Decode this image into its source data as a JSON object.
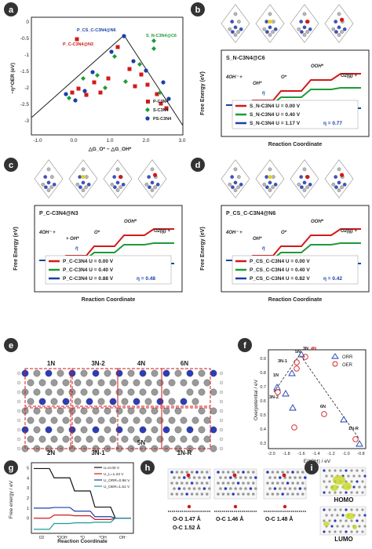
{
  "panel_a": {
    "label": "a",
    "ylabel": "−η^OER (eV)",
    "xlabel": "△G_O* − △G_OH*",
    "xticks": [
      "-1.0",
      "0.0",
      "1.0",
      "2.0",
      "3.0"
    ],
    "yticks": [
      "0",
      "-0.5",
      "-1",
      "-1.5",
      "-2",
      "-2.5",
      "-3"
    ],
    "annotations": [
      {
        "text": "P_CS_C-C3N4@N6",
        "color": "#1a3fa8"
      },
      {
        "text": "P_C-C3N4@N3",
        "color": "#d11a1a"
      },
      {
        "text": "S_N-C3N4@C6",
        "color": "#1e9a3a"
      }
    ],
    "legend": [
      {
        "text": "P-C3N4",
        "color": "#d11a1a",
        "marker": "square"
      },
      {
        "text": "S-C3N4",
        "color": "#1e9a3a",
        "marker": "diamond"
      },
      {
        "text": "PS-C3N4",
        "color": "#1a3fa8",
        "marker": "circle"
      }
    ]
  },
  "free_energy_panels": [
    {
      "label": "b",
      "title": "S_N-C3N4@C6",
      "ylabel": "Free Energy (eV)",
      "xlabel": "Reaction Coordinate",
      "species": [
        "4OH⁻ +",
        "OH*",
        "O*",
        "OOH*",
        "O2(g) +"
      ],
      "eta_marker": "η",
      "legend": [
        {
          "text": "S_N-C3N4 U = 0.00 V",
          "color": "#d11a1a"
        },
        {
          "text": "S_N-C3N4 U = 0.40 V",
          "color": "#1e9a3a"
        },
        {
          "text": "S_N-C3N4 U = 1.17 V",
          "eta": "η = 0.77",
          "color": "#1a3fa8"
        }
      ]
    },
    {
      "label": "c",
      "title": "P_C-C3N4@N3",
      "ylabel": "Free Energy (eV)",
      "xlabel": "Reaction Coordinate",
      "species": [
        "4OH⁻ + ",
        "+ OH*",
        "O*",
        "OOH*",
        "O2(g) +"
      ],
      "eta_marker": "η",
      "legend": [
        {
          "text": "P_C-C3N4 U = 0.00 V",
          "color": "#d11a1a"
        },
        {
          "text": "P_C-C3N4 U = 0.40 V",
          "color": "#1e9a3a"
        },
        {
          "text": "P_C-C3N4 U = 0.88 V",
          "eta": "η = 0.48",
          "color": "#1a3fa8"
        }
      ]
    },
    {
      "label": "d",
      "title": "P_CS_C-C3N4@N6",
      "ylabel": "Free Energy (eV)",
      "xlabel": "Reaction Coordinate",
      "species": [
        "4OH⁻ +",
        "OH*",
        "O*",
        "OOH*",
        "O2(g) +"
      ],
      "eta_marker": "η",
      "legend": [
        {
          "text": "P_CS_C-C3N4 U = 0.00 V",
          "color": "#d11a1a"
        },
        {
          "text": "P_CS_C-C3N4 U = 0.40 V",
          "color": "#1e9a3a"
        },
        {
          "text": "P_CS_C-C3N4 U = 0.82 V",
          "eta": "η = 0.42",
          "color": "#1a3fa8"
        }
      ]
    }
  ],
  "panel_e": {
    "label": "e",
    "site_labels_top": [
      "1N",
      "3N-2",
      "4N",
      "6N"
    ],
    "site_labels_bottom": [
      "2N",
      "3N-1",
      "5N",
      "1N-R"
    ]
  },
  "panel_f": {
    "label": "f",
    "ylabel": "Overpotential / eV",
    "xlabel": "E(*OH) / eV",
    "xticks": [
      "-2.0",
      "-1.8",
      "-1.6",
      "-1.4",
      "-1.2",
      "-1.0",
      "-0.8"
    ],
    "yticks": [
      "0.3",
      "0.4",
      "0.5",
      "0.6",
      "0.7",
      "0.8",
      "0.9"
    ],
    "legend": [
      {
        "text": "ORR",
        "color": "#1a3fa8",
        "marker": "triangle"
      },
      {
        "text": "OER",
        "color": "#d11a1a",
        "marker": "circle"
      }
    ],
    "point_labels": [
      "5N",
      "3N",
      "4N",
      "3N-1",
      "1N",
      "3N-2",
      "6N",
      "1N-R"
    ]
  },
  "panel_g": {
    "label": "g",
    "ylabel": "Free energy / eV",
    "xlabel": "Reaction Coordinate",
    "xticks": [
      "O2",
      "*OOH",
      "*O",
      "*OH",
      "OH⁻"
    ],
    "yticks": [
      "0",
      "1",
      "2",
      "3",
      "4",
      "5"
    ],
    "legend": [
      {
        "text": "U=0.00 V",
        "color": "#111111"
      },
      {
        "text": "U_L=1.23 V",
        "color": "#d11a1a"
      },
      {
        "text": "U_ORR=0.98 V",
        "color": "#1a3fa8"
      },
      {
        "text": "U_OER=1.51 V",
        "color": "#1e9a9a"
      }
    ],
    "chart_data": {
      "type": "line",
      "categories": [
        "O2",
        "*OOH",
        "*O",
        "*OH",
        "OH⁻"
      ],
      "series": [
        {
          "name": "U=0.00 V",
          "values": [
            4.92,
            4.0,
            2.7,
            1.1,
            0.0
          ]
        },
        {
          "name": "U_L=1.23 V",
          "values": [
            0.0,
            0.31,
            0.24,
            -0.13,
            0.0
          ]
        },
        {
          "name": "U_ORR=0.98 V",
          "values": [
            1.0,
            1.06,
            0.7,
            0.15,
            0.0
          ]
        },
        {
          "name": "U_OER=1.51 V",
          "values": [
            -1.1,
            -0.53,
            -0.46,
            -0.4,
            0.0
          ]
        }
      ],
      "ylim": [
        -1.5,
        5.5
      ]
    }
  },
  "panel_h": {
    "label": "h",
    "captions": [
      [
        "O-O 1.47 Å",
        "O-C 1.52 Å"
      ],
      [
        "O-C 1.46 Å"
      ],
      [
        "O-C 1.48 Å"
      ]
    ]
  },
  "panel_i": {
    "label": "i",
    "homo": "HOMO",
    "lumo": "LUMO"
  }
}
